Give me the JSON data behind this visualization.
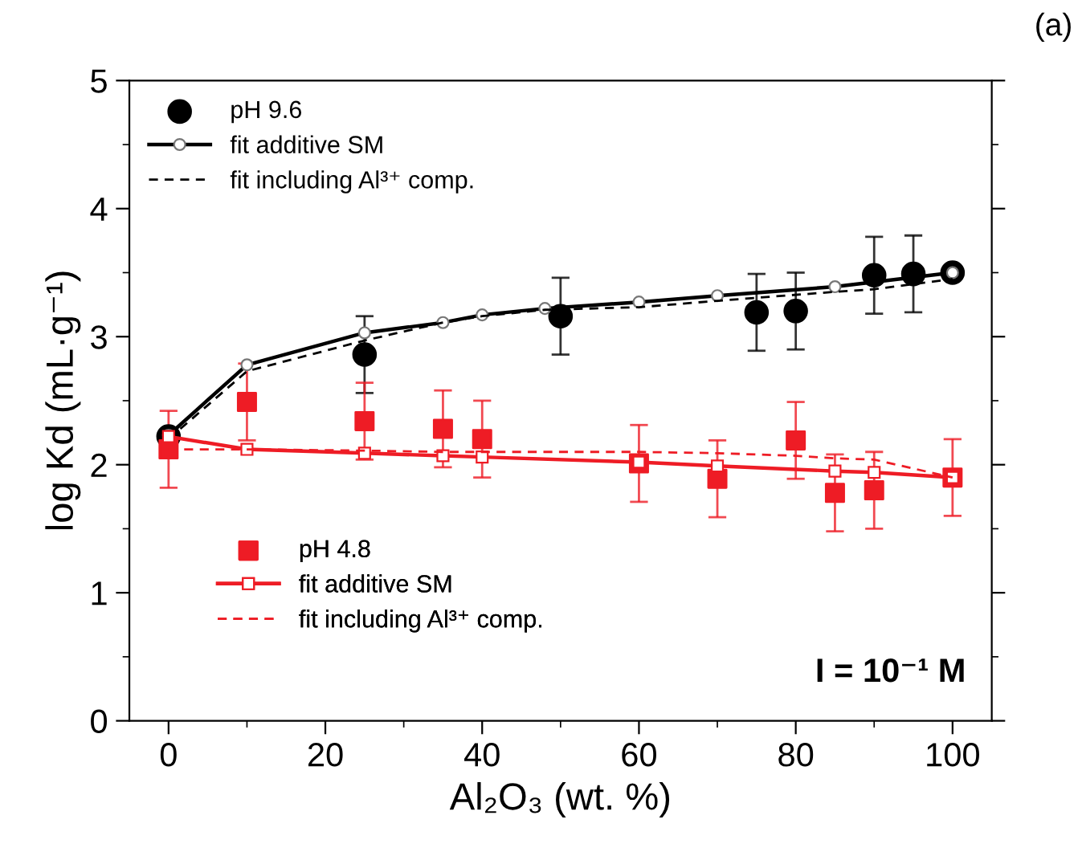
{
  "chart_data": {
    "type": "scatter",
    "xlabel": "Al₂O₃ (wt. %)",
    "ylabel": "log Kd (mL·g⁻¹)",
    "xlim": [
      -5,
      105
    ],
    "ylim": [
      0,
      5
    ],
    "xticks": [
      0,
      20,
      40,
      60,
      80,
      100
    ],
    "yticks": [
      0,
      1,
      2,
      3,
      4,
      5
    ],
    "grid": false,
    "legend": "top left",
    "annotations": [
      "(a)",
      "I = 10⁻¹ M"
    ],
    "series": [
      {
        "name": "pH 9.6",
        "marker": "circle",
        "color": "#000000",
        "x": [
          0,
          25,
          50,
          75,
          80,
          90,
          95,
          100
        ],
        "values": [
          2.22,
          2.86,
          3.16,
          3.19,
          3.2,
          3.48,
          3.49,
          3.5
        ],
        "errors": [
          0.05,
          0.3,
          0.3,
          0.3,
          0.3,
          0.3,
          0.3,
          null
        ]
      },
      {
        "name": "fit additive SM",
        "type": "line",
        "marker": "circle",
        "line_style": "solid",
        "color": "#000000",
        "x": [
          0,
          10,
          25,
          35,
          40,
          48,
          60,
          70,
          85,
          100
        ],
        "values": [
          2.23,
          2.78,
          3.03,
          3.11,
          3.17,
          3.22,
          3.27,
          3.32,
          3.39,
          3.5
        ]
      },
      {
        "name": "fit including Al³⁺ comp.",
        "type": "line",
        "marker": "none",
        "line_style": "dashed",
        "color": "#000000",
        "x": [
          0,
          10,
          25,
          35,
          40,
          48,
          60,
          70,
          85,
          90,
          100
        ],
        "values": [
          2.2,
          2.73,
          2.97,
          3.11,
          3.16,
          3.21,
          3.23,
          3.28,
          3.35,
          3.37,
          3.45
        ]
      },
      {
        "name": "pH 4.8",
        "marker": "square",
        "color": "#ee1c25",
        "x": [
          0,
          10,
          25,
          35,
          40,
          60,
          70,
          80,
          85,
          90,
          100
        ],
        "values": [
          2.12,
          2.49,
          2.34,
          2.28,
          2.2,
          2.01,
          1.89,
          2.19,
          1.78,
          1.8,
          1.9
        ],
        "errors": [
          0.3,
          0.3,
          0.3,
          0.3,
          0.3,
          0.3,
          0.3,
          0.3,
          0.3,
          0.3,
          0.3
        ]
      },
      {
        "name": "fit additive SM",
        "type": "line",
        "marker": "square",
        "line_style": "solid",
        "color": "#ee1c25",
        "x": [
          0,
          10,
          25,
          35,
          40,
          60,
          70,
          85,
          90,
          100
        ],
        "values": [
          2.22,
          2.12,
          2.09,
          2.07,
          2.06,
          2.02,
          1.99,
          1.95,
          1.94,
          1.9
        ]
      },
      {
        "name": "fit including Al³⁺ comp.",
        "type": "line",
        "marker": "none",
        "line_style": "dashed",
        "color": "#ee1c25",
        "x": [
          0,
          10,
          25,
          35,
          40,
          60,
          70,
          80,
          85,
          90,
          100
        ],
        "values": [
          2.12,
          2.12,
          2.11,
          2.1,
          2.1,
          2.1,
          2.09,
          2.07,
          2.05,
          2.04,
          1.9
        ]
      }
    ]
  }
}
